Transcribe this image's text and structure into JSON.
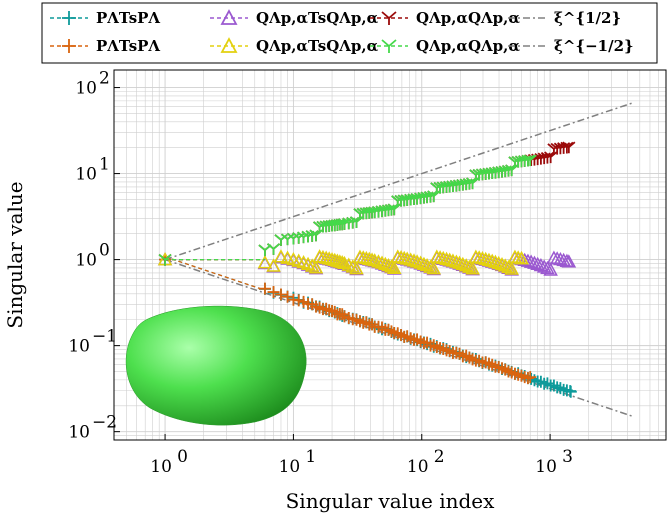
{
  "chart_data": {
    "type": "scatter",
    "x_scale": "log",
    "y_scale": "log",
    "xlabel": "Singular value index",
    "ylabel": "Singular value",
    "xlim": [
      0.4,
      8000
    ],
    "ylim": [
      0.008,
      160
    ],
    "x_ticks": [
      {
        "v": 1,
        "e": "0"
      },
      {
        "v": 10,
        "e": "1"
      },
      {
        "v": 100,
        "e": "2"
      },
      {
        "v": 1000,
        "e": "3"
      }
    ],
    "y_ticks": [
      {
        "v": 0.01,
        "e": "−2"
      },
      {
        "v": 0.1,
        "e": "−1"
      },
      {
        "v": 1,
        "e": "0"
      },
      {
        "v": 10,
        "e": "1"
      },
      {
        "v": 100,
        "e": "2"
      }
    ],
    "tick_base": "10",
    "grid": true,
    "legend_position": "top",
    "series": [
      {
        "name": "PΛTsPΛ",
        "color": "#0e9a9a",
        "marker": "plus",
        "style": "dashed",
        "count": 1450,
        "mode": "decay",
        "exp": -0.5,
        "c": 1.0,
        "start": 6
      },
      {
        "name": "PΛTsPΛ",
        "color": "#d9640f",
        "marker": "plus",
        "style": "dashed",
        "count": 700,
        "mode": "decay",
        "exp": -0.5,
        "c": 1.0,
        "start": 6
      },
      {
        "name": "QΛp,αTsQΛp,α",
        "color": "#9b59d0",
        "marker": "triangle",
        "style": "dashed",
        "count": 1400,
        "mode": "flat",
        "exp": 0,
        "c": 0.88,
        "start": 6
      },
      {
        "name": "QΛp,αTsQΛp,α",
        "color": "#e3d10f",
        "marker": "triangle",
        "style": "dashed",
        "count": 600,
        "mode": "flat",
        "exp": 0,
        "c": 0.9,
        "start": 6
      },
      {
        "name": "QΛp,αQΛp,α",
        "color": "#9b0a0a",
        "marker": "y",
        "style": "dashed",
        "count": 1400,
        "mode": "grow",
        "exp": 0.5,
        "c": 0.6,
        "start": 6
      },
      {
        "name": "QΛp,αQΛp,α",
        "color": "#45d94a",
        "marker": "y",
        "style": "dashed",
        "count": 700,
        "mode": "grow",
        "exp": 0.5,
        "c": 0.6,
        "start": 6
      }
    ],
    "reference_lines": [
      {
        "name": "ξ^{1/2}",
        "color": "#808080",
        "style": "dashdot",
        "exp": 0.5,
        "x_range": [
          1,
          4500
        ]
      },
      {
        "name": "ξ^{−1/2}",
        "color": "#808080",
        "style": "dashdot",
        "exp": -0.5,
        "x_range": [
          1,
          4500
        ]
      }
    ]
  },
  "legend": [
    {
      "label": "PΛTsPΛ",
      "color": "#0e9a9a",
      "marker": "plus"
    },
    {
      "label": "PΛTsPΛ",
      "color": "#d9640f",
      "marker": "plus"
    },
    {
      "label": "QΛp,αTsQΛp,α",
      "color": "#9b59d0",
      "marker": "triangle"
    },
    {
      "label": "QΛp,αTsQΛp,α",
      "color": "#e3d10f",
      "marker": "triangle"
    },
    {
      "label": "QΛp,αQΛp,α",
      "color": "#9b0a0a",
      "marker": "y"
    },
    {
      "label": "QΛp,αQΛp,α",
      "color": "#45d94a",
      "marker": "y"
    },
    {
      "label": "ξ^{1/2}",
      "color": "#808080",
      "marker": "none"
    },
    {
      "label": "ξ^{−1/2}",
      "color": "#808080",
      "marker": "none"
    }
  ],
  "inset": {
    "name": "green-blob-surface",
    "color": "#44d944"
  }
}
